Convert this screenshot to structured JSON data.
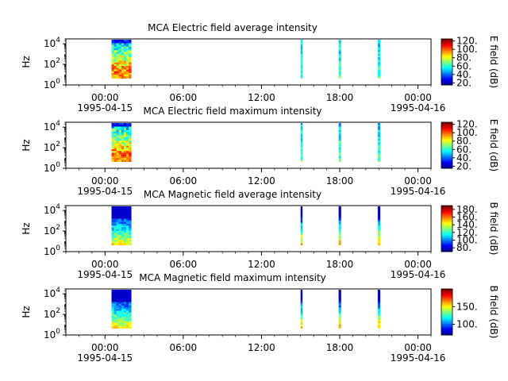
{
  "colors": {
    "colormap": [
      "#00008f",
      "#0000ff",
      "#0080ff",
      "#00ffff",
      "#80ff80",
      "#ffff00",
      "#ff8000",
      "#ff0000",
      "#800000"
    ],
    "missing": "#ffffff",
    "axis": "#000000"
  },
  "chart_data": [
    {
      "type": "heatmap",
      "title": "MCA  Electric field average intensity",
      "ylabel": "Hz",
      "yscale": "log",
      "ylim": [
        1,
        30000
      ],
      "yticks": [
        {
          "base": "10",
          "exp": "0",
          "value": 1
        },
        {
          "base": "10",
          "exp": "2",
          "value": 100
        },
        {
          "base": "10",
          "exp": "4",
          "value": 10000
        }
      ],
      "xlim": [
        "1995-04-14T21:00",
        "1995-04-16T01:00"
      ],
      "xticks": [
        "00:00",
        "06:00",
        "12:00",
        "18:00",
        "00:00"
      ],
      "xdates": [
        "1995-04-15",
        "1995-04-16"
      ],
      "colorbar": {
        "label": "E field (dB)",
        "range": [
          15,
          125
        ],
        "ticks": [
          20,
          40,
          60,
          80,
          100,
          120
        ],
        "tick_labels": [
          "20.",
          "40.",
          "60.",
          "80.",
          "100.",
          "120."
        ]
      },
      "segments": [
        {
          "start": "00:30",
          "end": "02:00",
          "pattern": "full-e"
        },
        {
          "start": "15:00",
          "end": "15:05",
          "pattern": "narrow-e"
        },
        {
          "start": "17:55",
          "end": "18:05",
          "pattern": "narrow-e"
        },
        {
          "start": "20:55",
          "end": "21:05",
          "pattern": "narrow-e"
        }
      ]
    },
    {
      "type": "heatmap",
      "title": "MCA  Electric field maximum intensity",
      "ylabel": "Hz",
      "yscale": "log",
      "ylim": [
        1,
        30000
      ],
      "yticks": [
        {
          "base": "10",
          "exp": "0",
          "value": 1
        },
        {
          "base": "10",
          "exp": "2",
          "value": 100
        },
        {
          "base": "10",
          "exp": "4",
          "value": 10000
        }
      ],
      "xlim": [
        "1995-04-14T21:00",
        "1995-04-16T01:00"
      ],
      "xticks": [
        "00:00",
        "06:00",
        "12:00",
        "18:00",
        "00:00"
      ],
      "xdates": [
        "1995-04-15",
        "1995-04-16"
      ],
      "colorbar": {
        "label": "E field (dB)",
        "range": [
          15,
          125
        ],
        "ticks": [
          20,
          40,
          60,
          80,
          100,
          120
        ],
        "tick_labels": [
          "20.",
          "40.",
          "60.",
          "80.",
          "100.",
          "120."
        ]
      },
      "segments": [
        {
          "start": "00:30",
          "end": "02:00",
          "pattern": "full-e"
        },
        {
          "start": "15:00",
          "end": "15:05",
          "pattern": "narrow-e"
        },
        {
          "start": "17:55",
          "end": "18:05",
          "pattern": "narrow-e"
        },
        {
          "start": "20:55",
          "end": "21:05",
          "pattern": "narrow-e"
        }
      ]
    },
    {
      "type": "heatmap",
      "title": "MCA  Magnetic field average intensity",
      "ylabel": "Hz",
      "yscale": "log",
      "ylim": [
        1,
        30000
      ],
      "yticks": [
        {
          "base": "10",
          "exp": "0",
          "value": 1
        },
        {
          "base": "10",
          "exp": "2",
          "value": 100
        },
        {
          "base": "10",
          "exp": "4",
          "value": 10000
        }
      ],
      "xlim": [
        "1995-04-14T21:00",
        "1995-04-16T01:00"
      ],
      "xticks": [
        "00:00",
        "06:00",
        "12:00",
        "18:00",
        "00:00"
      ],
      "xdates": [
        "1995-04-15",
        "1995-04-16"
      ],
      "colorbar": {
        "label": "B field (dB)",
        "range": [
          70,
          190
        ],
        "ticks": [
          80,
          100,
          120,
          140,
          160,
          180
        ],
        "tick_labels": [
          "80.",
          "100.",
          "120.",
          "140.",
          "160.",
          "180."
        ]
      },
      "segments": [
        {
          "start": "00:30",
          "end": "02:00",
          "pattern": "full-b"
        },
        {
          "start": "15:00",
          "end": "15:05",
          "pattern": "narrow-b"
        },
        {
          "start": "17:55",
          "end": "18:05",
          "pattern": "narrow-b"
        },
        {
          "start": "20:55",
          "end": "21:05",
          "pattern": "narrow-b"
        }
      ]
    },
    {
      "type": "heatmap",
      "title": "MCA  Magnetic field maximum intensity",
      "ylabel": "Hz",
      "yscale": "log",
      "ylim": [
        1,
        30000
      ],
      "yticks": [
        {
          "base": "10",
          "exp": "0",
          "value": 1
        },
        {
          "base": "10",
          "exp": "2",
          "value": 100
        },
        {
          "base": "10",
          "exp": "4",
          "value": 10000
        }
      ],
      "xlim": [
        "1995-04-14T21:00",
        "1995-04-16T01:00"
      ],
      "xticks": [
        "00:00",
        "06:00",
        "12:00",
        "18:00",
        "00:00"
      ],
      "xdates": [
        "1995-04-15",
        "1995-04-16"
      ],
      "colorbar": {
        "label": "B field (dB)",
        "range": [
          70,
          200
        ],
        "ticks": [
          100,
          150
        ],
        "tick_labels": [
          "100.",
          "150."
        ]
      },
      "segments": [
        {
          "start": "00:30",
          "end": "02:00",
          "pattern": "full-b"
        },
        {
          "start": "15:00",
          "end": "15:05",
          "pattern": "narrow-b"
        },
        {
          "start": "17:55",
          "end": "18:05",
          "pattern": "narrow-b"
        },
        {
          "start": "20:55",
          "end": "21:05",
          "pattern": "narrow-b"
        }
      ]
    }
  ]
}
